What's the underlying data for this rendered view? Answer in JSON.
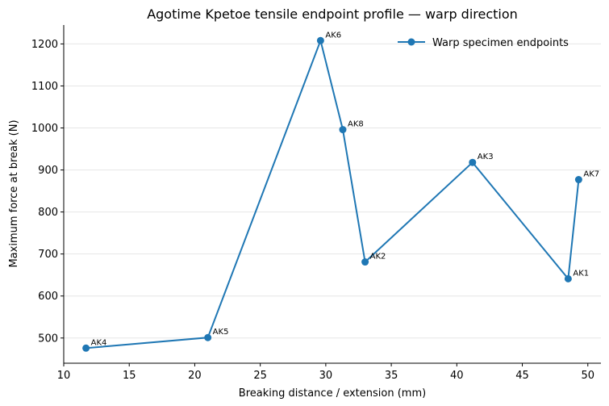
{
  "chart_data": {
    "type": "line",
    "title": "Agotime Kpetoe tensile endpoint profile — warp direction",
    "xlabel": "Breaking distance / extension (mm)",
    "ylabel": "Maximum force at break (N)",
    "xlim": [
      10,
      51
    ],
    "ylim": [
      440,
      1245
    ],
    "x_ticks": [
      10,
      15,
      20,
      25,
      30,
      35,
      40,
      45,
      50
    ],
    "y_ticks": [
      500,
      600,
      700,
      800,
      900,
      1000,
      1100,
      1200
    ],
    "grid": "horizontal",
    "legend_position": "top-right",
    "color": "#1f77b4",
    "series": [
      {
        "name": "Warp specimen endpoints",
        "points": [
          {
            "label": "AK4",
            "x": 11.7,
            "y": 476
          },
          {
            "label": "AK5",
            "x": 21.0,
            "y": 501
          },
          {
            "label": "AK6",
            "x": 29.6,
            "y": 1208
          },
          {
            "label": "AK8",
            "x": 31.3,
            "y": 996
          },
          {
            "label": "AK2",
            "x": 33.0,
            "y": 681
          },
          {
            "label": "AK3",
            "x": 41.2,
            "y": 918
          },
          {
            "label": "AK1",
            "x": 48.5,
            "y": 641
          },
          {
            "label": "AK7",
            "x": 49.3,
            "y": 877
          }
        ]
      }
    ]
  }
}
